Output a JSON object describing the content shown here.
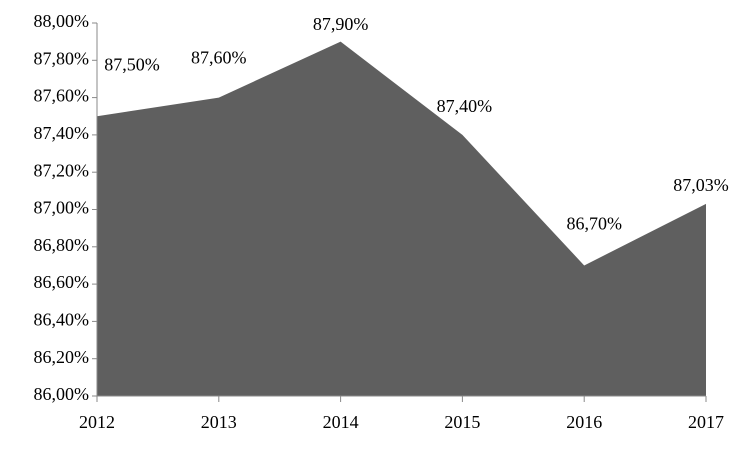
{
  "chart_data": {
    "type": "area",
    "categories": [
      "2012",
      "2013",
      "2014",
      "2015",
      "2016",
      "2017"
    ],
    "values": [
      87.5,
      87.6,
      87.9,
      87.4,
      86.7,
      87.03
    ],
    "value_labels": [
      "87,50%",
      "87,60%",
      "87,90%",
      "87,40%",
      "86,70%",
      "87,03%"
    ],
    "color": "#5f5f5f",
    "ylim": [
      86,
      88
    ],
    "yticks": [
      {
        "value": 86,
        "label": "86,00%"
      },
      {
        "value": 86.2,
        "label": "86,20%"
      },
      {
        "value": 86.4,
        "label": "86,40%"
      },
      {
        "value": 86.6,
        "label": "86,60%"
      },
      {
        "value": 86.8,
        "label": "86,80%"
      },
      {
        "value": 87,
        "label": "87,00%"
      },
      {
        "value": 87.2,
        "label": "87,20%"
      },
      {
        "value": 87.4,
        "label": "87,40%"
      },
      {
        "value": 87.6,
        "label": "87,60%"
      },
      {
        "value": 87.8,
        "label": "87,80%"
      },
      {
        "value": 88,
        "label": "88,00%"
      }
    ]
  }
}
